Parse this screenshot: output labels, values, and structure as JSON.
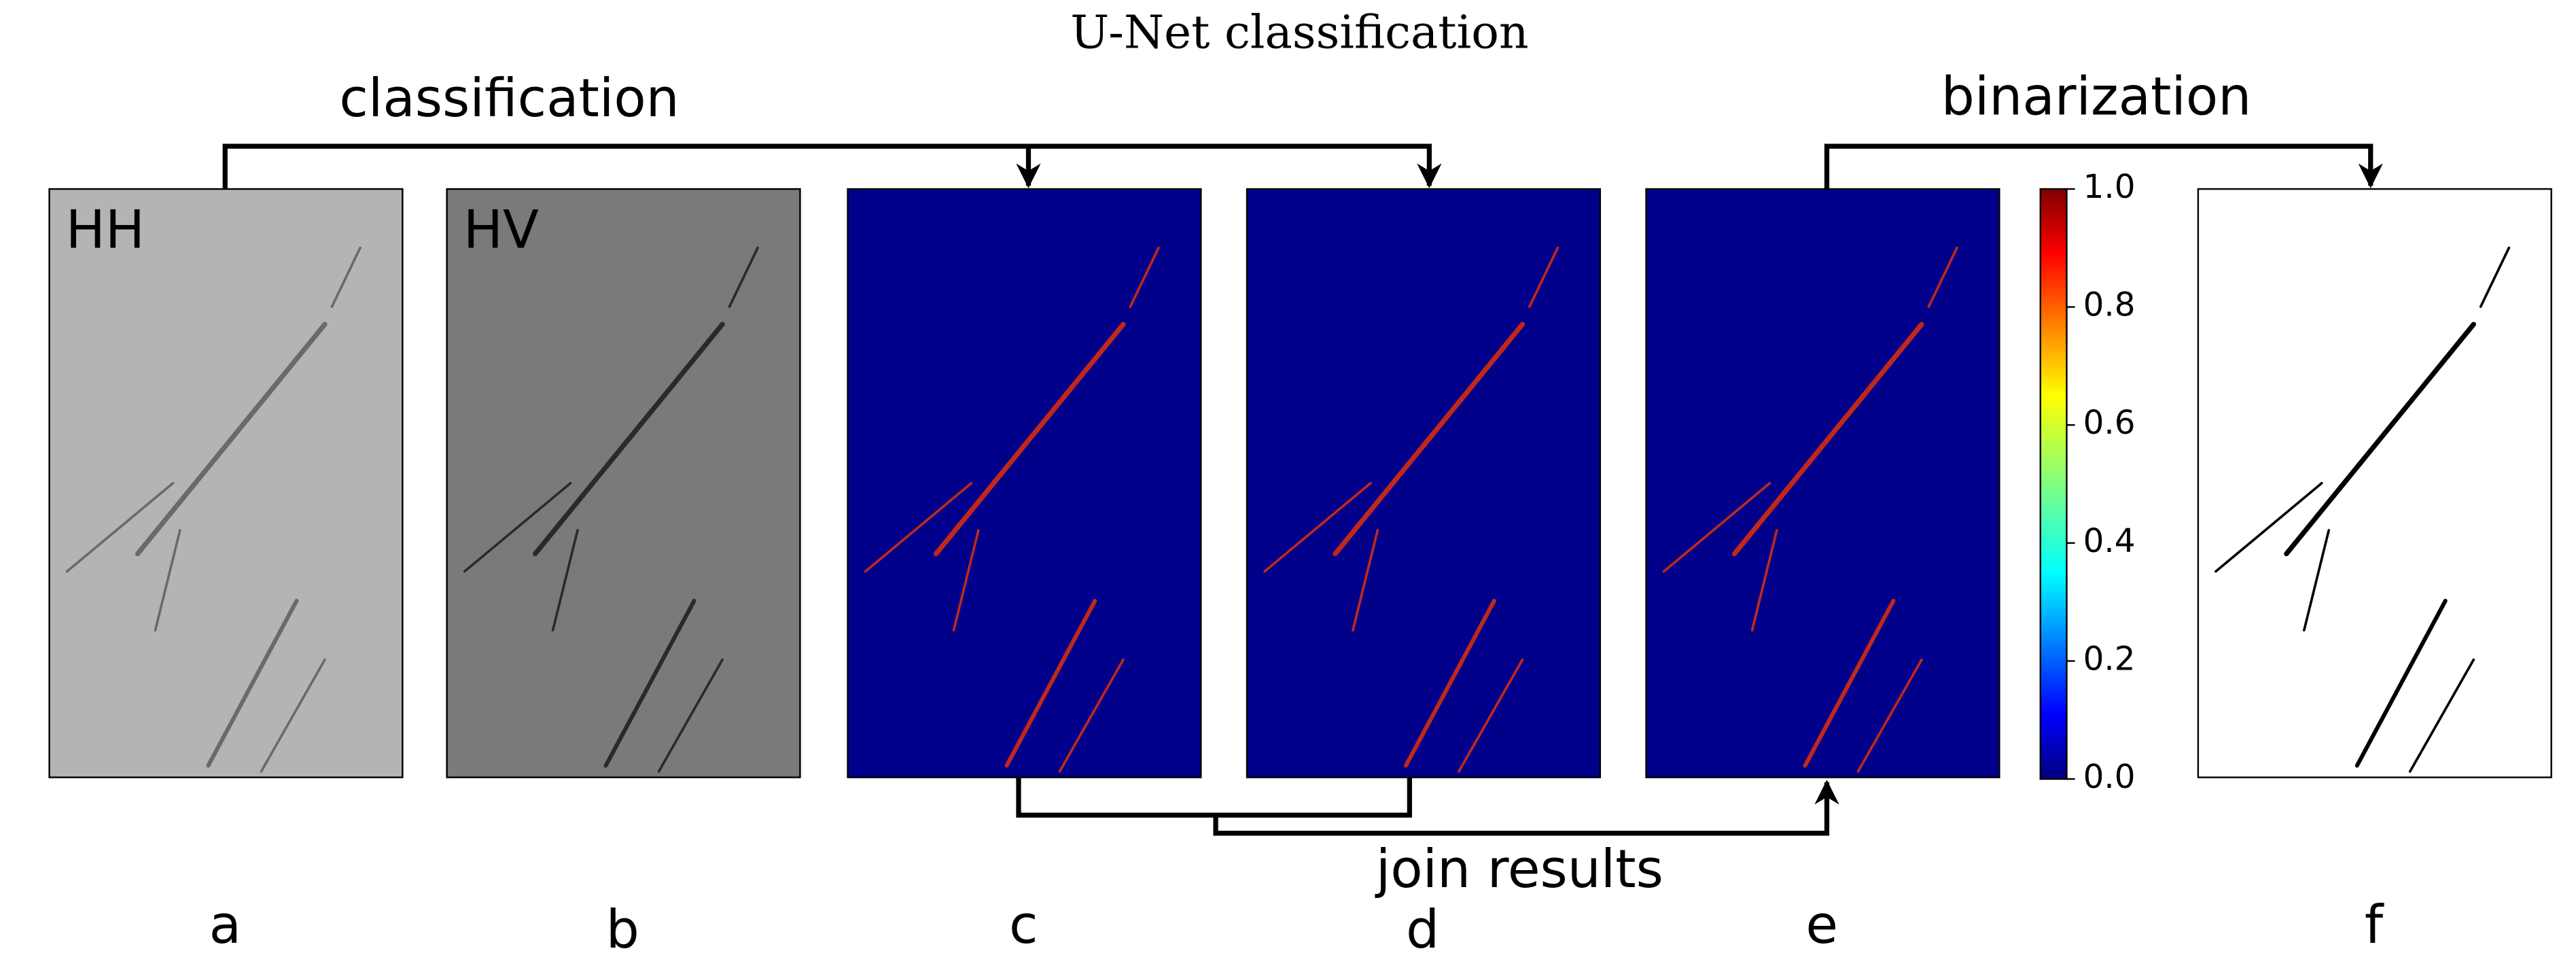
{
  "title": "U-Net classification",
  "steps": {
    "classification": "classification",
    "binarization": "binarization",
    "join": "join results"
  },
  "panels": [
    {
      "label": "a",
      "overlay": "HH"
    },
    {
      "label": "b",
      "overlay": "HV"
    },
    {
      "label": "c"
    },
    {
      "label": "d"
    },
    {
      "label": "e"
    },
    {
      "label": "f"
    }
  ],
  "colorbar": {
    "lim": [
      0,
      1
    ],
    "ticks": [
      {
        "value": 0,
        "label": "0.0"
      },
      {
        "value": 0.2,
        "label": "0.2"
      },
      {
        "value": 0.4,
        "label": "0.4"
      },
      {
        "value": 0.6,
        "label": "0.6"
      },
      {
        "value": 0.8,
        "label": "0.8"
      },
      {
        "value": 1,
        "label": "1.0"
      }
    ]
  }
}
